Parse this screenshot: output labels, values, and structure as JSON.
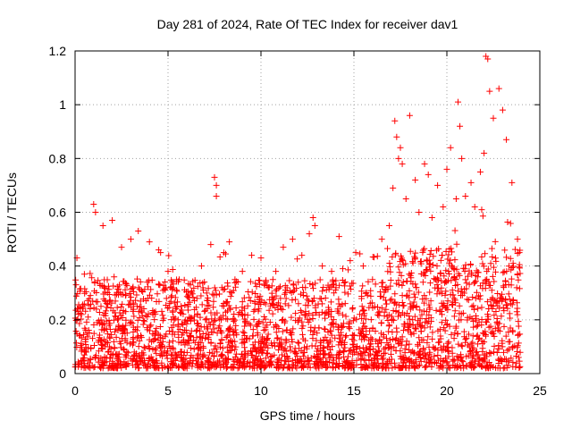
{
  "chart_data": {
    "type": "scatter",
    "title": "Day 281 of 2024, Rate Of TEC Index for receiver dav1",
    "xlabel": "GPS time / hours",
    "ylabel": "ROTI / TECUs",
    "xlim": [
      0,
      25
    ],
    "ylim": [
      0,
      1.2
    ],
    "x_ticks": [
      0,
      5,
      10,
      15,
      20,
      25
    ],
    "x_tick_labels": [
      "0",
      "5",
      "10",
      "15",
      "20",
      "25"
    ],
    "y_ticks": [
      0,
      0.2,
      0.4,
      0.6,
      0.8,
      1,
      1.2
    ],
    "y_tick_labels": [
      "0",
      "0.2",
      "0.4",
      "0.6",
      "0.8",
      "1",
      "1.2"
    ],
    "grid": true,
    "marker": "plus",
    "marker_color": "#ff0000",
    "series": [
      {
        "name": "ROTI",
        "x": [
          0.1,
          0.5,
          1.0,
          1.1,
          1.5,
          2.0,
          2.5,
          3.0,
          3.4,
          4.0,
          4.5,
          4.6,
          5.0,
          5.6,
          6.2,
          6.8,
          7.3,
          7.5,
          7.6,
          7.6,
          8.0,
          8.3,
          8.6,
          9.0,
          9.5,
          10.0,
          10.4,
          10.8,
          11.2,
          11.7,
          12.2,
          12.6,
          12.8,
          12.9,
          13.3,
          13.8,
          14.2,
          14.4,
          14.8,
          15.1,
          15.5,
          16.0,
          16.5,
          16.9,
          17.1,
          17.2,
          17.3,
          17.4,
          17.5,
          17.6,
          17.8,
          18.0,
          18.3,
          18.5,
          18.8,
          19.0,
          19.2,
          19.5,
          19.8,
          20.0,
          20.2,
          20.5,
          20.6,
          20.7,
          20.8,
          21.0,
          21.3,
          21.5,
          21.8,
          22.0,
          22.1,
          22.2,
          22.3,
          22.5,
          22.8,
          23.0,
          23.2,
          23.5,
          23.8,
          23.9
        ],
        "y": [
          0.43,
          0.37,
          0.63,
          0.6,
          0.55,
          0.57,
          0.47,
          0.5,
          0.53,
          0.49,
          0.46,
          0.45,
          0.38,
          0.35,
          0.33,
          0.4,
          0.48,
          0.73,
          0.7,
          0.66,
          0.45,
          0.49,
          0.35,
          0.38,
          0.44,
          0.43,
          0.32,
          0.38,
          0.47,
          0.5,
          0.44,
          0.52,
          0.58,
          0.55,
          0.4,
          0.38,
          0.51,
          0.39,
          0.42,
          0.45,
          0.4,
          0.35,
          0.5,
          0.55,
          0.69,
          0.94,
          0.88,
          0.8,
          0.84,
          0.78,
          0.65,
          0.96,
          0.72,
          0.6,
          0.78,
          0.74,
          0.58,
          0.7,
          0.62,
          0.76,
          0.84,
          0.65,
          1.01,
          0.92,
          0.8,
          0.66,
          0.71,
          0.62,
          0.75,
          0.82,
          1.18,
          1.17,
          1.05,
          0.95,
          1.06,
          0.98,
          0.87,
          0.71,
          0.5,
          0.45
        ],
        "noise_band": {
          "low": 0.02,
          "high": 0.35,
          "typical": 0.15
        }
      }
    ]
  }
}
